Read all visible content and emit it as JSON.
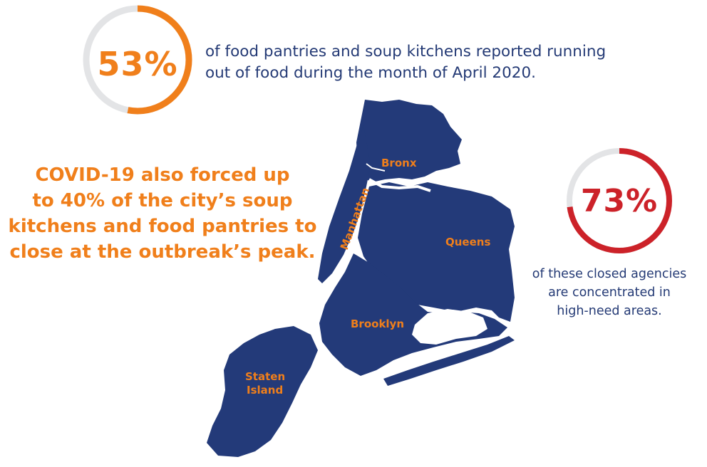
{
  "stat_food_out": {
    "percent_label": "53%",
    "percent_value": 53,
    "description_line1": "of food pantries and soup kitchens reported running",
    "description_line2": "out of food during the month of April 2020."
  },
  "headline": {
    "line1": "COVID-19 also forced up",
    "line2": "to 40% of the city’s soup",
    "line3": "kitchens and food pantries to",
    "line4": "close at the outbreak’s peak."
  },
  "stat_closed": {
    "percent_label": "73%",
    "percent_value": 73,
    "description_line1": "of these closed agencies",
    "description_line2": "are concentrated in",
    "description_line3": "high-need areas."
  },
  "map": {
    "boroughs": {
      "bronx": "Bronx",
      "manhattan": "Manhattan",
      "queens": "Queens",
      "brooklyn": "Brooklyn",
      "staten_island_line1": "Staten",
      "staten_island_line2": "Island"
    }
  },
  "colors": {
    "orange": "#f07f1b",
    "navy": "#233a79",
    "red": "#cc2229",
    "ring_track": "#e3e4e6",
    "body_text": "#243a75"
  }
}
